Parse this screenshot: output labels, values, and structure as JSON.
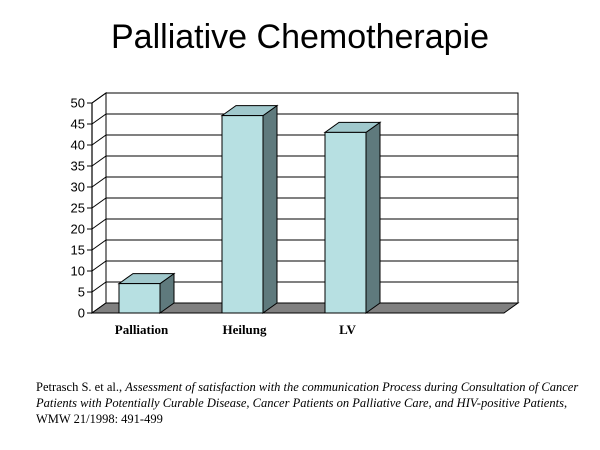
{
  "colors": {
    "bar_front": "#b7e0e2",
    "bar_top": "#a0c8cc",
    "bar_side": "#5f7a7d",
    "floor": "#808080",
    "grid": "#000000",
    "text": "#000000"
  },
  "chart_data": {
    "type": "bar",
    "title": "Palliative Chemotherapie",
    "xlabel": "",
    "ylabel": "",
    "categories": [
      "Palliation",
      "Heilung",
      "LV",
      ""
    ],
    "values": [
      7,
      47,
      43,
      null
    ],
    "ylim": [
      0,
      50
    ],
    "yticks": [
      0,
      5,
      10,
      15,
      20,
      25,
      30,
      35,
      40,
      45,
      50
    ],
    "ytick_labels": [
      "0",
      "5",
      "10",
      "15",
      "20",
      "25",
      "30",
      "35",
      "40",
      "45",
      "50"
    ],
    "grid": true,
    "legend": "none",
    "style": "3d"
  },
  "citation": {
    "authors": "Petrasch S. et al., ",
    "title": "Assessment of satisfaction with the communication Process during Consultation of Cancer Patients with Potentially Curable Disease, Cancer Patients on Palliative Care, and HIV-positive Patients",
    "source": ", WMW 21/1998: 491-499"
  }
}
